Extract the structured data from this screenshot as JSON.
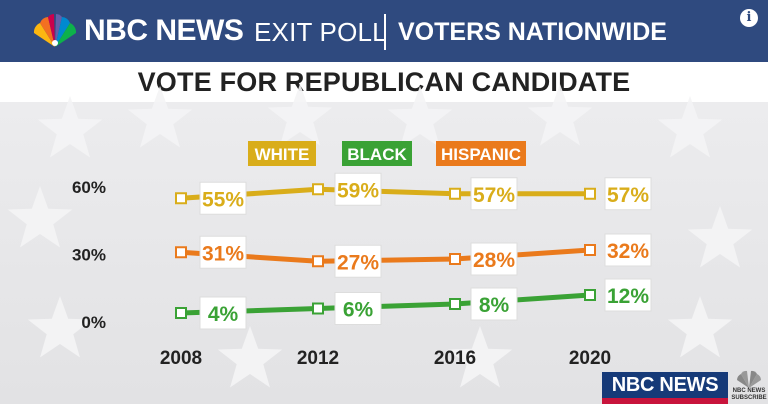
{
  "header": {
    "brand": "NBC NEWS",
    "poll": "EXIT POLL",
    "scope": "VOTERS NATIONWIDE",
    "info_symbol": "i"
  },
  "title": "VOTE FOR REPUBLICAN CANDIDATE",
  "watermark": {
    "brand": "NBC NEWS",
    "subscribe": "NBC NEWS SUBSCRIBE"
  },
  "colors": {
    "header_bg": "#2f4a7f",
    "white_series": "#d9ad1a",
    "black_series": "#3aa235",
    "hispanic_series": "#ea7a1c"
  },
  "chart_data": {
    "type": "line",
    "title": "VOTE FOR REPUBLICAN CANDIDATE",
    "x": [
      "2008",
      "2012",
      "2016",
      "2020"
    ],
    "ylim": [
      0,
      60
    ],
    "yticks": [
      "0%",
      "30%",
      "60%"
    ],
    "legend_position": "top-center",
    "grid": false,
    "series": [
      {
        "name": "WHITE",
        "color": "#d9ad1a",
        "values": [
          55,
          59,
          57,
          57
        ],
        "labels": [
          "55%",
          "59%",
          "57%",
          "57%"
        ]
      },
      {
        "name": "BLACK",
        "color": "#3aa235",
        "values": [
          4,
          6,
          8,
          12
        ],
        "labels": [
          "4%",
          "6%",
          "8%",
          "12%"
        ]
      },
      {
        "name": "HISPANIC",
        "color": "#ea7a1c",
        "values": [
          31,
          27,
          28,
          32
        ],
        "labels": [
          "31%",
          "27%",
          "28%",
          "32%"
        ]
      }
    ]
  }
}
